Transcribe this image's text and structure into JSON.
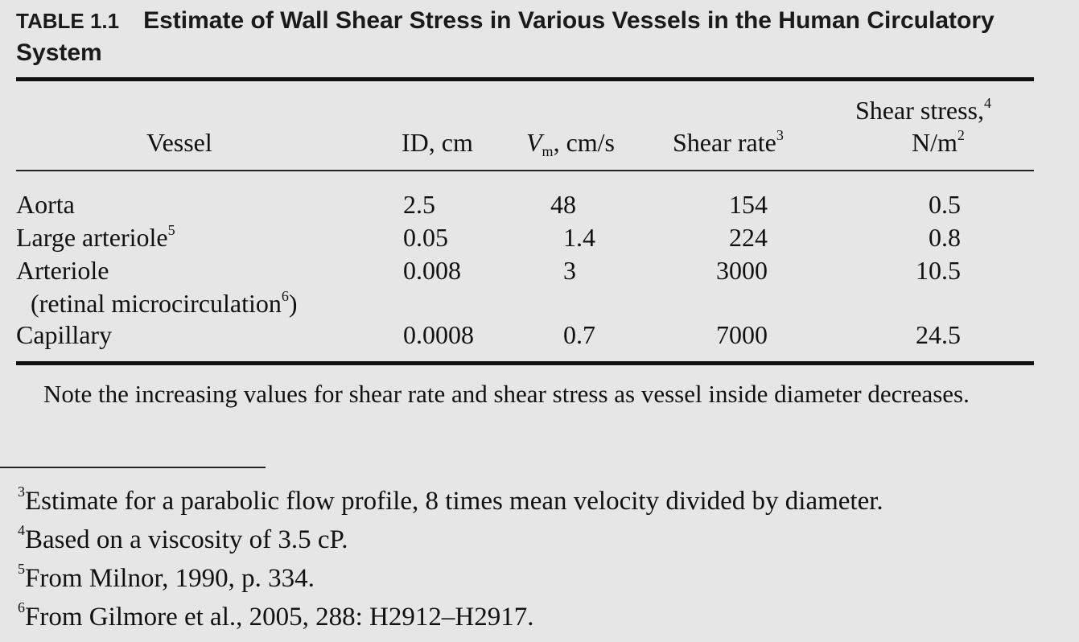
{
  "table": {
    "caption_label": "TABLE 1.1",
    "caption_title": "Estimate of Wall Shear Stress in Various Vessels in the Human Circulatory System",
    "headers": {
      "vessel": "Vessel",
      "id": "ID, cm",
      "vm_symbol": "V",
      "vm_sub": "m",
      "vm_unit": ", cm/s",
      "shear_rate": "Shear rate",
      "shear_rate_note": "3",
      "shear_stress_line1": "Shear stress,",
      "shear_stress_note": "4",
      "shear_stress_line2": "N/m",
      "shear_stress_exp": "2"
    },
    "rows": [
      {
        "vessel": "Aorta",
        "vessel_note": "",
        "vessel_line2": "",
        "vessel_line2_note": "",
        "id": "2.5",
        "vm": "48",
        "shear_rate": "154",
        "shear_stress": "0.5"
      },
      {
        "vessel": "Large arteriole",
        "vessel_note": "5",
        "vessel_line2": "",
        "vessel_line2_note": "",
        "id": "0.05",
        "vm": "1.4",
        "shear_rate": "224",
        "shear_stress": "0.8"
      },
      {
        "vessel": "Arteriole",
        "vessel_note": "",
        "vessel_line2": "(retinal microcirculation",
        "vessel_line2_note": "6",
        "id": "0.008",
        "vm": "3",
        "shear_rate": "3000",
        "shear_stress": "10.5"
      },
      {
        "vessel": "Capillary",
        "vessel_note": "",
        "vessel_line2": "",
        "vessel_line2_note": "",
        "id": "0.0008",
        "vm": "0.7",
        "shear_rate": "7000",
        "shear_stress": "24.5"
      }
    ],
    "note": "Note the increasing values for shear rate and shear stress as vessel inside diameter decreases."
  },
  "footnotes": [
    {
      "mark": "3",
      "text": "Estimate for a parabolic flow profile, 8 times mean velocity divided by diameter."
    },
    {
      "mark": "4",
      "text": "Based on a viscosity of 3.5 cP."
    },
    {
      "mark": "5",
      "text": "From Milnor, 1990, p. 334."
    },
    {
      "mark": "6",
      "text": "From Gilmore et al., 2005, 288: H2912–H2917."
    }
  ]
}
